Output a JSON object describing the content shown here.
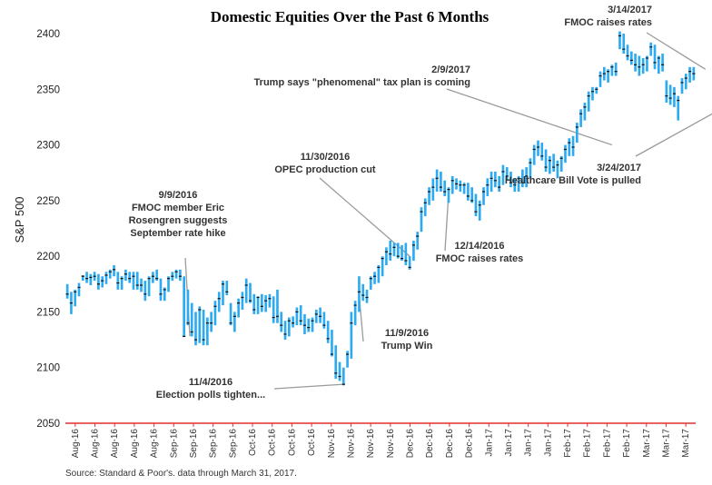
{
  "chart_data": {
    "type": "candlestick",
    "title": "Domestic Equities Over the Past 6 Months",
    "ylabel": "S&P 500",
    "xlabel": "",
    "ylim": [
      2050,
      2400
    ],
    "yticks": [
      2050,
      2100,
      2150,
      2200,
      2250,
      2300,
      2350,
      2400
    ],
    "xtick_labels": [
      "Aug-16",
      "Aug-16",
      "Aug-16",
      "Aug-16",
      "Aug-16",
      "Sep-16",
      "Sep-16",
      "Sep-16",
      "Sep-16",
      "Oct-16",
      "Oct-16",
      "Oct-16",
      "Oct-16",
      "Nov-16",
      "Nov-16",
      "Nov-16",
      "Nov-16",
      "Dec-16",
      "Dec-16",
      "Dec-16",
      "Dec-16",
      "Jan-17",
      "Jan-17",
      "Jan-17",
      "Jan-17",
      "Feb-17",
      "Feb-17",
      "Feb-17",
      "Feb-17",
      "Mar-17",
      "Mar-17",
      "Mar-17"
    ],
    "grid": false,
    "legend": "none",
    "colors": {
      "bar": "#2eaaf0",
      "baseline": "#e03030",
      "close_mark": "#111111",
      "annotation_line": "#9a9a9a"
    },
    "series": [
      {
        "values": [
          [
            2170,
            2175,
            2162,
            2166
          ],
          [
            2166,
            2168,
            2148,
            2158
          ],
          [
            2160,
            2170,
            2155,
            2168
          ],
          [
            2168,
            2176,
            2164,
            2172
          ],
          [
            2181,
            2183,
            2178,
            2182
          ],
          [
            2182,
            2186,
            2176,
            2180
          ],
          [
            2178,
            2184,
            2174,
            2181
          ],
          [
            2183,
            2186,
            2178,
            2182
          ],
          [
            2180,
            2184,
            2170,
            2175
          ],
          [
            2176,
            2182,
            2172,
            2178
          ],
          [
            2178,
            2186,
            2175,
            2183
          ],
          [
            2184,
            2188,
            2180,
            2186
          ],
          [
            2186,
            2192,
            2182,
            2188
          ],
          [
            2184,
            2186,
            2170,
            2176
          ],
          [
            2176,
            2182,
            2170,
            2180
          ],
          [
            2180,
            2188,
            2178,
            2184
          ],
          [
            2183,
            2186,
            2176,
            2180
          ],
          [
            2176,
            2186,
            2170,
            2182
          ],
          [
            2182,
            2186,
            2170,
            2174
          ],
          [
            2175,
            2180,
            2168,
            2174
          ],
          [
            2172,
            2178,
            2160,
            2166
          ],
          [
            2168,
            2182,
            2164,
            2180
          ],
          [
            2180,
            2186,
            2176,
            2182
          ],
          [
            2182,
            2188,
            2178,
            2180
          ],
          [
            2178,
            2180,
            2160,
            2166
          ],
          [
            2166,
            2172,
            2160,
            2170
          ],
          [
            2172,
            2182,
            2168,
            2180
          ],
          [
            2182,
            2186,
            2178,
            2182
          ],
          [
            2184,
            2188,
            2180,
            2186
          ],
          [
            2186,
            2188,
            2178,
            2182
          ],
          [
            2182,
            2182,
            2128,
            2128
          ],
          [
            2168,
            2170,
            2138,
            2140
          ],
          [
            2140,
            2158,
            2128,
            2132
          ],
          [
            2130,
            2150,
            2120,
            2125
          ],
          [
            2125,
            2155,
            2122,
            2152
          ],
          [
            2150,
            2152,
            2120,
            2125
          ],
          [
            2126,
            2145,
            2120,
            2140
          ],
          [
            2140,
            2150,
            2132,
            2140
          ],
          [
            2142,
            2160,
            2138,
            2155
          ],
          [
            2156,
            2168,
            2150,
            2162
          ],
          [
            2162,
            2178,
            2156,
            2175
          ],
          [
            2175,
            2178,
            2165,
            2168
          ],
          [
            2150,
            2158,
            2138,
            2140
          ],
          [
            2140,
            2150,
            2132,
            2146
          ],
          [
            2148,
            2162,
            2145,
            2158
          ],
          [
            2158,
            2168,
            2152,
            2163
          ],
          [
            2165,
            2180,
            2158,
            2174
          ],
          [
            2172,
            2176,
            2158,
            2160
          ],
          [
            2160,
            2166,
            2148,
            2152
          ],
          [
            2152,
            2164,
            2148,
            2163
          ],
          [
            2162,
            2166,
            2150,
            2155
          ],
          [
            2156,
            2165,
            2150,
            2160
          ],
          [
            2160,
            2166,
            2154,
            2162
          ],
          [
            2162,
            2164,
            2140,
            2145
          ],
          [
            2160,
            2170,
            2140,
            2146
          ],
          [
            2146,
            2150,
            2132,
            2138
          ],
          [
            2138,
            2142,
            2125,
            2130
          ],
          [
            2133,
            2145,
            2128,
            2142
          ],
          [
            2142,
            2146,
            2136,
            2140
          ],
          [
            2140,
            2154,
            2138,
            2150
          ],
          [
            2150,
            2156,
            2138,
            2142
          ],
          [
            2142,
            2148,
            2130,
            2138
          ],
          [
            2138,
            2144,
            2132,
            2136
          ],
          [
            2136,
            2145,
            2132,
            2142
          ],
          [
            2144,
            2152,
            2140,
            2148
          ],
          [
            2148,
            2154,
            2140,
            2146
          ],
          [
            2143,
            2150,
            2135,
            2138
          ],
          [
            2136,
            2142,
            2122,
            2126
          ],
          [
            2126,
            2134,
            2110,
            2112
          ],
          [
            2112,
            2120,
            2090,
            2095
          ],
          [
            2095,
            2105,
            2088,
            2092
          ],
          [
            2092,
            2100,
            2084,
            2085
          ],
          [
            2108,
            2115,
            2100,
            2112
          ],
          [
            2112,
            2150,
            2108,
            2140
          ],
          [
            2145,
            2160,
            2138,
            2156
          ],
          [
            2160,
            2182,
            2150,
            2168
          ],
          [
            2168,
            2175,
            2160,
            2165
          ],
          [
            2166,
            2170,
            2158,
            2163
          ],
          [
            2175,
            2182,
            2170,
            2180
          ],
          [
            2180,
            2186,
            2175,
            2182
          ],
          [
            2180,
            2192,
            2176,
            2190
          ],
          [
            2188,
            2200,
            2182,
            2198
          ],
          [
            2198,
            2208,
            2192,
            2204
          ],
          [
            2204,
            2214,
            2196,
            2202
          ],
          [
            2204,
            2212,
            2200,
            2208
          ],
          [
            2208,
            2212,
            2198,
            2200
          ],
          [
            2204,
            2210,
            2196,
            2198
          ],
          [
            2198,
            2212,
            2192,
            2196
          ],
          [
            2196,
            2200,
            2188,
            2190
          ],
          [
            2200,
            2214,
            2196,
            2210
          ],
          [
            2210,
            2222,
            2206,
            2218
          ],
          [
            2226,
            2244,
            2222,
            2240
          ],
          [
            2240,
            2252,
            2236,
            2248
          ],
          [
            2250,
            2262,
            2246,
            2258
          ],
          [
            2255,
            2270,
            2250,
            2262
          ],
          [
            2262,
            2278,
            2258,
            2270
          ],
          [
            2270,
            2276,
            2258,
            2262
          ],
          [
            2262,
            2268,
            2254,
            2258
          ],
          [
            2256,
            2262,
            2248,
            2260
          ],
          [
            2260,
            2272,
            2256,
            2268
          ],
          [
            2266,
            2270,
            2260,
            2265
          ],
          [
            2262,
            2268,
            2258,
            2264
          ],
          [
            2262,
            2266,
            2256,
            2264
          ],
          [
            2260,
            2266,
            2250,
            2254
          ],
          [
            2256,
            2262,
            2248,
            2250
          ],
          [
            2248,
            2256,
            2236,
            2240
          ],
          [
            2240,
            2250,
            2232,
            2246
          ],
          [
            2250,
            2262,
            2246,
            2258
          ],
          [
            2258,
            2270,
            2254,
            2264
          ],
          [
            2264,
            2276,
            2258,
            2270
          ],
          [
            2270,
            2276,
            2262,
            2268
          ],
          [
            2266,
            2272,
            2258,
            2262
          ],
          [
            2268,
            2282,
            2264,
            2276
          ],
          [
            2274,
            2280,
            2268,
            2272
          ],
          [
            2272,
            2276,
            2262,
            2266
          ],
          [
            2266,
            2270,
            2258,
            2264
          ],
          [
            2262,
            2272,
            2258,
            2270
          ],
          [
            2270,
            2278,
            2262,
            2266
          ],
          [
            2266,
            2280,
            2262,
            2272
          ],
          [
            2272,
            2288,
            2270,
            2284
          ],
          [
            2286,
            2300,
            2282,
            2296
          ],
          [
            2298,
            2304,
            2290,
            2298
          ],
          [
            2298,
            2302,
            2286,
            2290
          ],
          [
            2290,
            2296,
            2276,
            2280
          ],
          [
            2280,
            2290,
            2274,
            2286
          ],
          [
            2286,
            2292,
            2276,
            2280
          ],
          [
            2276,
            2286,
            2270,
            2282
          ],
          [
            2284,
            2290,
            2276,
            2288
          ],
          [
            2288,
            2300,
            2284,
            2296
          ],
          [
            2296,
            2306,
            2290,
            2302
          ],
          [
            2300,
            2308,
            2290,
            2298
          ],
          [
            2306,
            2320,
            2302,
            2316
          ],
          [
            2320,
            2332,
            2316,
            2328
          ],
          [
            2328,
            2338,
            2322,
            2334
          ],
          [
            2334,
            2348,
            2330,
            2344
          ],
          [
            2346,
            2352,
            2340,
            2348
          ],
          [
            2350,
            2352,
            2346,
            2350
          ],
          [
            2358,
            2366,
            2352,
            2362
          ],
          [
            2362,
            2370,
            2358,
            2364
          ],
          [
            2364,
            2368,
            2356,
            2366
          ],
          [
            2366,
            2372,
            2362,
            2370
          ],
          [
            2370,
            2374,
            2362,
            2366
          ],
          [
            2394,
            2402,
            2386,
            2398
          ],
          [
            2396,
            2400,
            2382,
            2386
          ],
          [
            2384,
            2390,
            2376,
            2380
          ],
          [
            2380,
            2384,
            2372,
            2376
          ],
          [
            2376,
            2382,
            2366,
            2372
          ],
          [
            2372,
            2380,
            2362,
            2370
          ],
          [
            2370,
            2378,
            2364,
            2372
          ],
          [
            2372,
            2380,
            2366,
            2378
          ],
          [
            2386,
            2392,
            2380,
            2388
          ],
          [
            2388,
            2390,
            2368,
            2374
          ],
          [
            2376,
            2380,
            2364,
            2378
          ],
          [
            2376,
            2382,
            2366,
            2372
          ],
          [
            2350,
            2358,
            2338,
            2344
          ],
          [
            2346,
            2354,
            2336,
            2342
          ],
          [
            2342,
            2352,
            2334,
            2346
          ],
          [
            2338,
            2344,
            2322,
            2340
          ],
          [
            2352,
            2360,
            2346,
            2356
          ],
          [
            2356,
            2364,
            2350,
            2360
          ],
          [
            2360,
            2370,
            2356,
            2366
          ],
          [
            2366,
            2370,
            2358,
            2364
          ]
        ]
      }
    ],
    "annotations": [
      {
        "lines": [
          "9/9/2016",
          "FMOC member Eric",
          "Rosengren suggests",
          "September rate hike"
        ],
        "x": 31.5,
        "y": 2128
      },
      {
        "lines": [
          "11/4/2016",
          "Election polls tighten..."
        ],
        "x": 71,
        "y": 2085
      },
      {
        "lines": [
          "11/9/2016",
          "Trump Win"
        ],
        "x": 75,
        "y": 2165
      },
      {
        "lines": [
          "11/30/2016",
          "OPEC production cut"
        ],
        "x": 88,
        "y": 2200
      },
      {
        "lines": [
          "12/14/2016",
          "FMOC raises rates"
        ],
        "x": 98,
        "y": 2256
      },
      {
        "lines": [
          "2/9/2017",
          "Trump says \"phenomenal\" tax plan is coming"
        ],
        "x": 140,
        "y": 2300
      },
      {
        "lines": [
          "3/14/2017",
          "FMOC raises rates"
        ],
        "x": 164,
        "y": 2368
      },
      {
        "lines": [
          "3/24/2017",
          "Healthcare Bill Vote is pulled"
        ],
        "x": 172,
        "y": 2340
      }
    ],
    "source": "Source: Standard & Poor's. data through March 31, 2017."
  }
}
